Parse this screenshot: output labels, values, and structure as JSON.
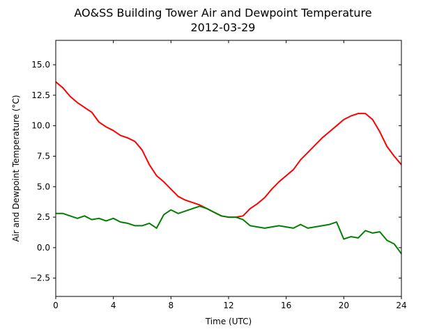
{
  "chart_data": {
    "type": "line",
    "title": "AO&SS Building Tower Air and Dewpoint Temperature",
    "subtitle": "2012-03-29",
    "xlabel": "Time (UTC)",
    "ylabel": "Air and Dewpoint Temperature (°C)",
    "xlim": [
      0,
      24
    ],
    "ylim": [
      -4,
      17
    ],
    "xticks": [
      0,
      4,
      8,
      12,
      16,
      20,
      24
    ],
    "xtick_labels": [
      "0",
      "4",
      "8",
      "12",
      "16",
      "20",
      "24"
    ],
    "yticks": [
      -2.5,
      0.0,
      2.5,
      5.0,
      7.5,
      10.0,
      12.5,
      15.0
    ],
    "ytick_labels": [
      "−2.5",
      "0.0",
      "2.5",
      "5.0",
      "7.5",
      "10.0",
      "12.5",
      "15.0"
    ],
    "grid": false,
    "series": [
      {
        "color": "#ff0000",
        "x": [
          0,
          0.5,
          1,
          1.5,
          2,
          2.5,
          3,
          3.5,
          4,
          4.5,
          5,
          5.5,
          6,
          6.5,
          7,
          7.5,
          8,
          8.5,
          9,
          9.5,
          10,
          10.5,
          11,
          11.5,
          12,
          12.5,
          13,
          13.5,
          14,
          14.5,
          15,
          15.5,
          16,
          16.5,
          17,
          17.5,
          18,
          18.5,
          19,
          19.5,
          20,
          20.5,
          21,
          21.5,
          22,
          22.5,
          23,
          23.5,
          24
        ],
        "values": [
          13.6,
          13.1,
          12.4,
          11.9,
          11.5,
          11.1,
          10.3,
          9.9,
          9.6,
          9.2,
          9.0,
          8.7,
          8.0,
          6.8,
          5.9,
          5.4,
          4.8,
          4.2,
          3.9,
          3.7,
          3.5,
          3.2,
          2.9,
          2.6,
          2.5,
          2.5,
          2.6,
          3.2,
          3.6,
          4.1,
          4.8,
          5.4,
          5.9,
          6.4,
          7.2,
          7.8,
          8.4,
          9.0,
          9.5,
          10.0,
          10.5,
          10.8,
          11.0,
          11.0,
          10.5,
          9.5,
          8.3,
          7.5,
          6.8
        ]
      },
      {
        "color": "#008000",
        "x": [
          0,
          0.5,
          1,
          1.5,
          2,
          2.5,
          3,
          3.5,
          4,
          4.5,
          5,
          5.5,
          6,
          6.5,
          7,
          7.5,
          8,
          8.5,
          9,
          9.5,
          10,
          10.5,
          11,
          11.5,
          12,
          12.5,
          13,
          13.5,
          14,
          14.5,
          15,
          15.5,
          16,
          16.5,
          17,
          17.5,
          18,
          18.5,
          19,
          19.5,
          20,
          20.5,
          21,
          21.5,
          22,
          22.5,
          23,
          23.5,
          24
        ],
        "values": [
          2.8,
          2.8,
          2.6,
          2.4,
          2.6,
          2.3,
          2.4,
          2.2,
          2.4,
          2.1,
          2.0,
          1.8,
          1.8,
          2.0,
          1.6,
          2.7,
          3.1,
          2.8,
          3.0,
          3.2,
          3.4,
          3.2,
          2.9,
          2.6,
          2.5,
          2.5,
          2.3,
          1.8,
          1.7,
          1.6,
          1.7,
          1.8,
          1.7,
          1.6,
          1.9,
          1.6,
          1.7,
          1.8,
          1.9,
          2.1,
          0.7,
          0.9,
          0.8,
          1.4,
          1.2,
          1.3,
          0.6,
          0.3,
          -0.5
        ]
      }
    ]
  }
}
